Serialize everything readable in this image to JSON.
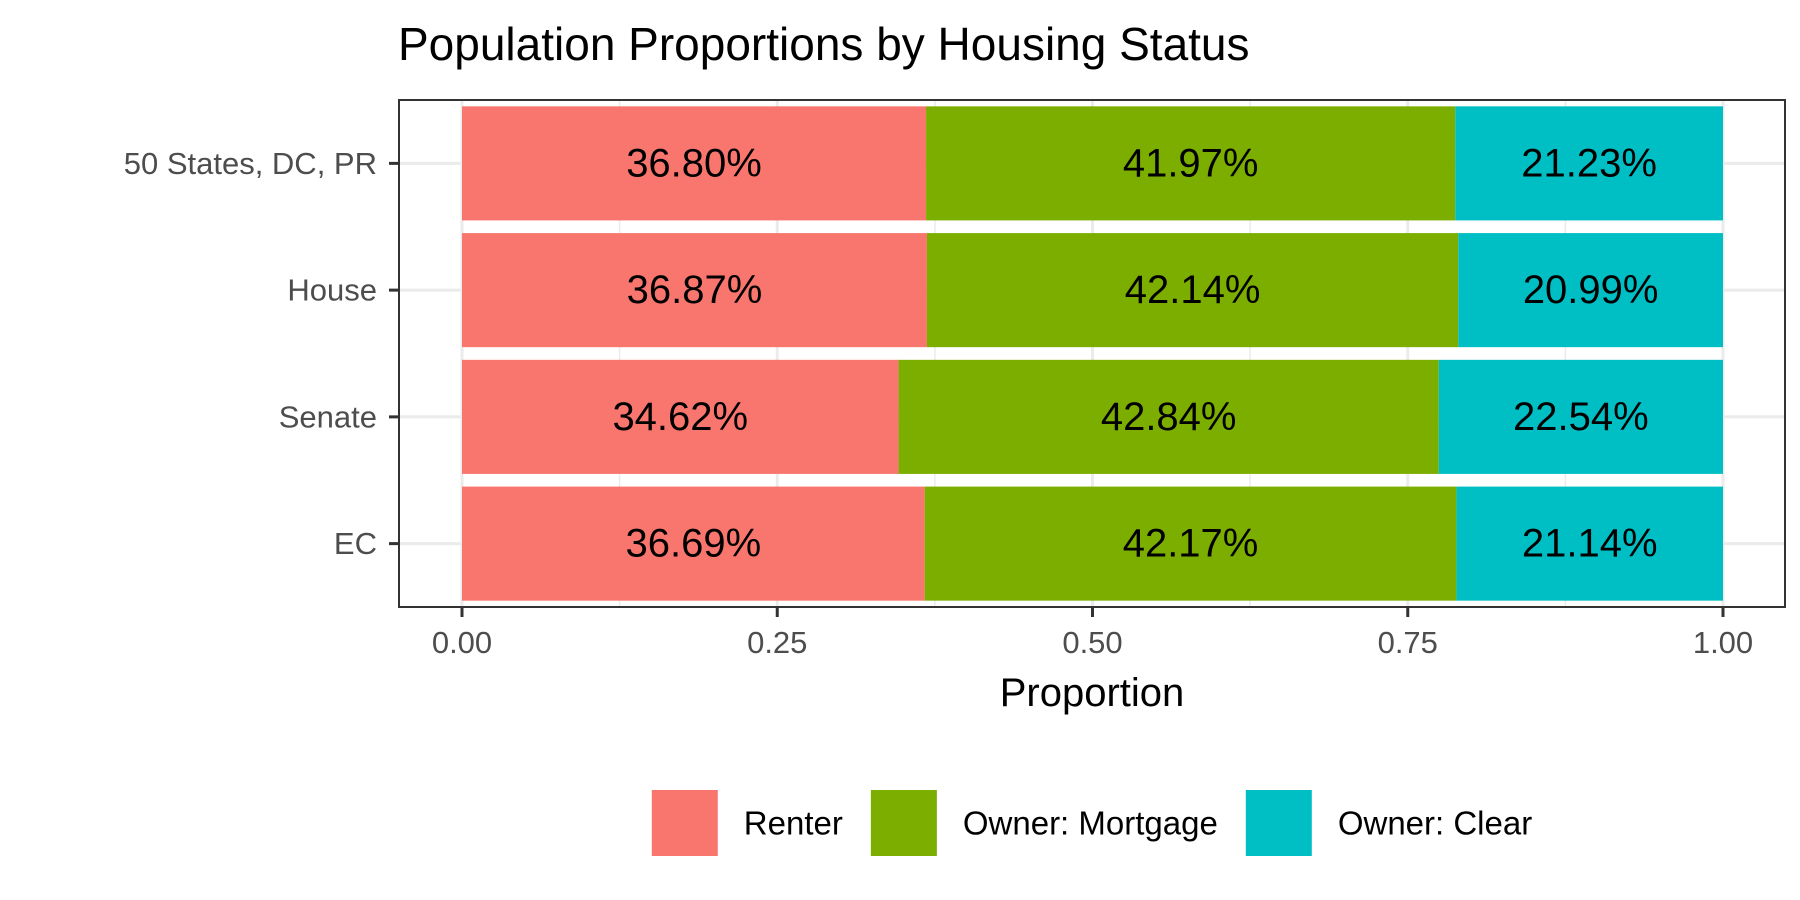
{
  "chart_data": {
    "type": "bar",
    "orientation": "horizontal",
    "stacked": true,
    "title": "Population Proportions by Housing Status",
    "xlabel": "Proportion",
    "ylabel": "",
    "xlim": [
      0,
      1
    ],
    "xticks": [
      "0.00",
      "0.25",
      "0.50",
      "0.75",
      "1.00"
    ],
    "categories": [
      "50 States, DC, PR",
      "House",
      "Senate",
      "EC"
    ],
    "series": [
      {
        "name": "Renter",
        "color": "#F8766D",
        "values": [
          0.368,
          0.3687,
          0.3462,
          0.3669
        ],
        "labels": [
          "36.80%",
          "36.87%",
          "34.62%",
          "36.69%"
        ]
      },
      {
        "name": "Owner: Mortgage",
        "color": "#7CAE00",
        "values": [
          0.4197,
          0.4214,
          0.4284,
          0.4217
        ],
        "labels": [
          "41.97%",
          "42.14%",
          "42.84%",
          "42.17%"
        ]
      },
      {
        "name": "Owner: Clear",
        "color": "#00BFC4",
        "values": [
          0.2123,
          0.2099,
          0.2254,
          0.2114
        ],
        "labels": [
          "21.23%",
          "20.99%",
          "22.54%",
          "21.14%"
        ]
      }
    ],
    "grid": true,
    "legend_position": "bottom"
  }
}
